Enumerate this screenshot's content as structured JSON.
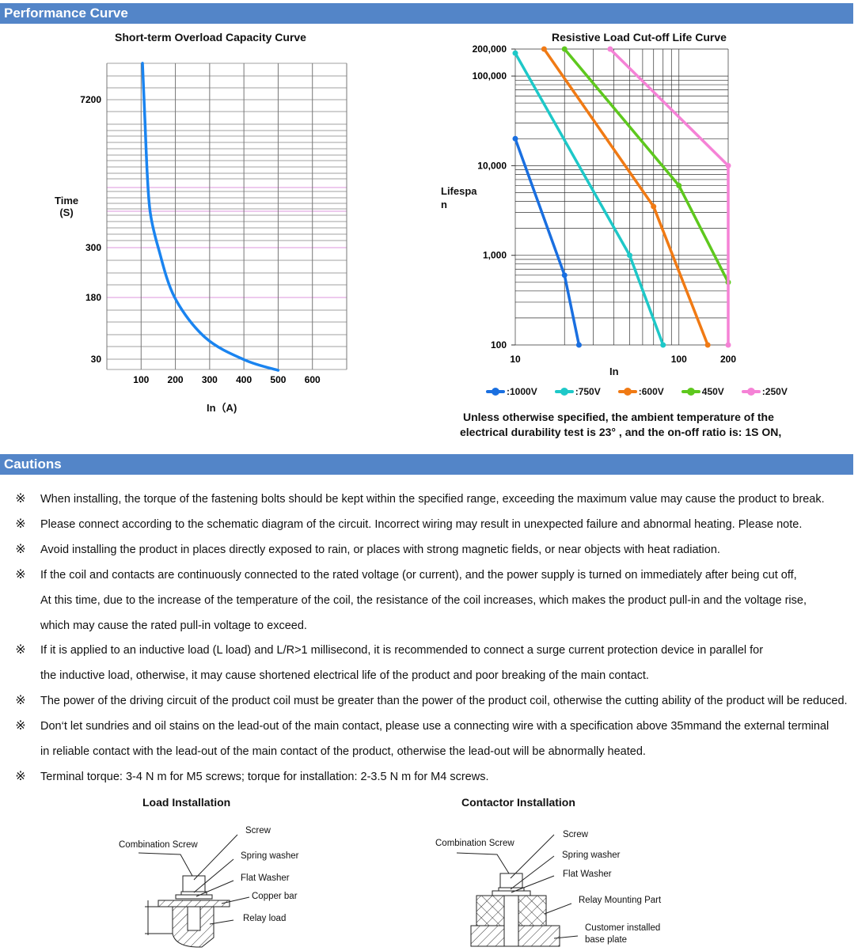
{
  "sections": {
    "performance": "Performance Curve",
    "cautions": "Cautions"
  },
  "chart_data": [
    {
      "type": "line",
      "title": "Short-term Overload Capacity Curve",
      "xlabel": "In（A)",
      "ylabel_line1": "Time",
      "ylabel_line2": "(S)",
      "x_ticks": [
        "100",
        "200",
        "300",
        "400",
        "500",
        "600"
      ],
      "x_tick_values": [
        100,
        200,
        300,
        400,
        500,
        600
      ],
      "xlim": [
        0,
        700
      ],
      "y_ticks": [
        "7200",
        "300",
        "180",
        "30"
      ],
      "y_tick_values": [
        7200,
        300,
        180,
        30
      ],
      "y_scale": "non-uniform",
      "grid": true,
      "highlight_gridline_color": "#d070d0",
      "series": [
        {
          "color": "#1a84f0",
          "x": [
            104,
            111,
            118,
            127,
            150,
            198,
            288,
            403,
            500
          ],
          "y": [
            8900,
            6300,
            3700,
            1900,
            300,
            180,
            82,
            28,
            3
          ]
        }
      ]
    },
    {
      "type": "line",
      "title": "Resistive Load Cut-off Life Curve",
      "xlabel": "In",
      "ylabel_line1": "Lifespa",
      "ylabel_line2": "n",
      "x_scale": "log",
      "y_scale": "log",
      "xlim": [
        10,
        200
      ],
      "ylim": [
        100,
        200000
      ],
      "x_ticks": [
        "10",
        "100",
        "200"
      ],
      "x_tick_values": [
        10,
        100,
        200
      ],
      "y_ticks": [
        "200,000",
        "100,000",
        "10,000",
        "1,000",
        "100"
      ],
      "y_tick_values": [
        200000,
        100000,
        10000,
        1000,
        100
      ],
      "grid": true,
      "legend_position": "bottom",
      "series": [
        {
          "name": ":1000V",
          "color": "#1a6fe0",
          "x": [
            10,
            20,
            24.5
          ],
          "y": [
            20000,
            600,
            100
          ]
        },
        {
          "name": ":750V",
          "color": "#1ec8c8",
          "x": [
            10,
            50,
            80
          ],
          "y": [
            180000,
            1000,
            100
          ]
        },
        {
          "name": ":600V",
          "color": "#f07a14",
          "x": [
            15,
            70,
            150
          ],
          "y": [
            200000,
            3500,
            100
          ]
        },
        {
          "name": "450V",
          "color": "#5ec81e",
          "x": [
            20,
            100,
            200
          ],
          "y": [
            200000,
            6000,
            500
          ]
        },
        {
          "name": ":250V",
          "color": "#f582d6",
          "x": [
            38,
            200,
            200
          ],
          "y": [
            200000,
            10000,
            100
          ]
        }
      ]
    }
  ],
  "note_line1": "Unless otherwise specified, the ambient temperature of the",
  "note_line2": "electrical durability test is 23°  , and the on-off ratio is: 1S ON,",
  "caution_marker": "※",
  "cautions": [
    {
      "bullet": true,
      "text": "When installing, the torque of the fastening bolts should be kept within the specified range, exceeding the maximum value may cause the product to break."
    },
    {
      "bullet": true,
      "text": "Please connect according to the schematic diagram of the circuit. Incorrect wiring may result in unexpected failure and abnormal heating. Please note."
    },
    {
      "bullet": true,
      "text": "Avoid installing the product in places directly exposed to rain, or places with strong magnetic fields, or near objects with heat radiation."
    },
    {
      "bullet": true,
      "text": "If the coil and contacts are continuously connected to the rated voltage (or current), and the power supply is turned on immediately after being cut off,"
    },
    {
      "bullet": false,
      "text": "At this time, due to the increase of the temperature of the coil, the resistance of the coil increases, which makes the product pull-in and the voltage rise,"
    },
    {
      "bullet": false,
      "text": "which may cause the rated pull-in voltage to exceed."
    },
    {
      "bullet": true,
      "text": "If it is applied to an inductive load (L load) and L/R>1 millisecond, it is recommended to connect a surge current protection device in parallel for"
    },
    {
      "bullet": false,
      "text": "the inductive load, otherwise, it may cause shortened electrical life of the product and poor breaking of the main contact."
    },
    {
      "bullet": true,
      "text": "The power of the driving circuit of the product coil must be greater than the power of the product coil, otherwise the cutting ability of the product will be reduced."
    },
    {
      "bullet": true,
      "text": "Don‘t let sundries and oil stains on the lead-out of the main contact, please use a connecting wire with a specification above 35mmand the external terminal"
    },
    {
      "bullet": false,
      "text": "in reliable contact with the lead-out of the main contact of the product, otherwise the lead-out will be abnormally heated."
    },
    {
      "bullet": true,
      "text": "Terminal torque: 3-4 N m for M5 screws; torque for installation: 2-3.5 N m for M4 screws."
    }
  ],
  "load_installation": {
    "title": "Load Installation",
    "labels": {
      "screw": "Screw",
      "combination": "Combination Screw",
      "spring": "Spring washer",
      "flat": "Flat Washer",
      "copper": "Copper bar",
      "relay": "Relay load"
    }
  },
  "contactor_installation": {
    "title": "Contactor Installation",
    "labels": {
      "screw": "Screw",
      "combination": "Combination Screw",
      "spring": "Spring washer",
      "flat": "Flat Washer",
      "mount": "Relay Mounting Part",
      "base1": "Customer installed",
      "base2": "base plate"
    }
  }
}
